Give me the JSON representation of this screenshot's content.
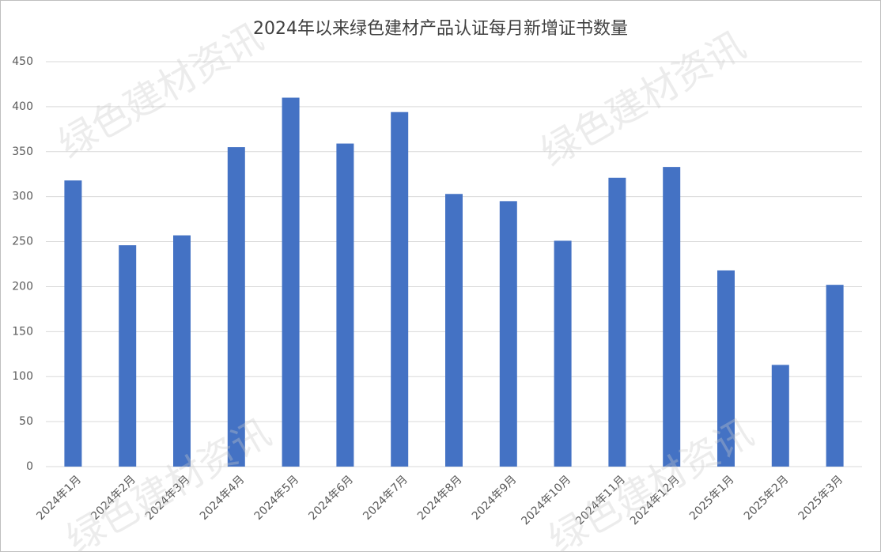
{
  "chart_data": {
    "type": "bar",
    "title": "2024年以来绿色建材产品认证每月新增证书数量",
    "watermark": "绿色建材资讯",
    "categories": [
      "2024年1月",
      "2024年2月",
      "2024年3月",
      "2024年4月",
      "2024年5月",
      "2024年6月",
      "2024年7月",
      "2024年8月",
      "2024年9月",
      "2024年10月",
      "2024年11月",
      "2024年12月",
      "2025年1月",
      "2025年2月",
      "2025年3月"
    ],
    "values": [
      318,
      246,
      257,
      355,
      410,
      359,
      394,
      303,
      295,
      251,
      321,
      333,
      218,
      113,
      202
    ],
    "color": "#4472c4",
    "ylim": [
      0,
      450
    ],
    "yticks": [
      0,
      50,
      100,
      150,
      200,
      250,
      300,
      350,
      400,
      450
    ],
    "grid": true
  }
}
